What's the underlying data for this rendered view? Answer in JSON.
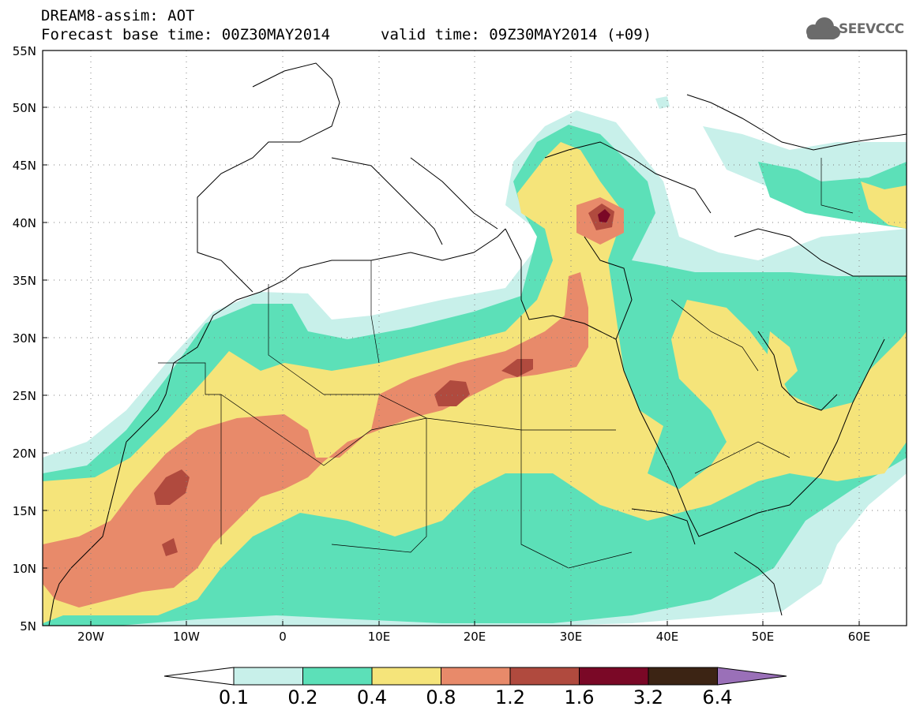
{
  "title": {
    "line1": "DREAM8-assim: AOT",
    "line2": "Forecast base time: 00Z30MAY2014",
    "valid": "valid time: 09Z30MAY2014 (+09)"
  },
  "logo": {
    "text": "SEEVCCC",
    "icon": "cloud-icon"
  },
  "axes": {
    "lat_ticks": [
      "55N",
      "50N",
      "45N",
      "40N",
      "35N",
      "30N",
      "25N",
      "20N",
      "15N",
      "10N",
      "5N"
    ],
    "lon_ticks": [
      "20W",
      "10W",
      "0",
      "10E",
      "20E",
      "30E",
      "40E",
      "50E",
      "60E"
    ],
    "lat_range": [
      5,
      55
    ],
    "lon_range": [
      -25,
      65
    ],
    "grid": "dotted"
  },
  "colorbar": {
    "labels": [
      "0.1",
      "0.2",
      "0.4",
      "0.8",
      "1.2",
      "1.6",
      "3.2",
      "6.4"
    ],
    "colors": [
      "#ffffff",
      "#c8f0ea",
      "#5ce0b8",
      "#f5e47a",
      "#e88a6a",
      "#b04a3e",
      "#7a0826",
      "#3c2414",
      "#9a70b8"
    ]
  },
  "field": {
    "variable": "AOT",
    "levels": [
      0.1,
      0.2,
      0.4,
      0.8,
      1.2,
      1.6,
      3.2,
      6.4
    ]
  }
}
